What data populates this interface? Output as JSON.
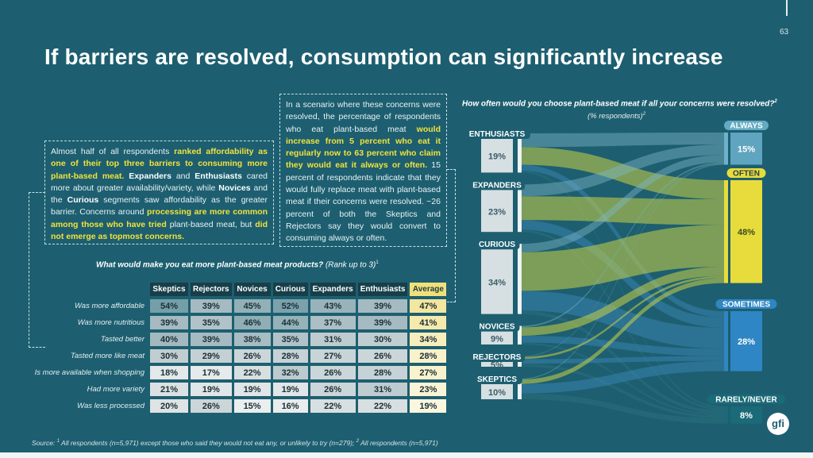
{
  "page": {
    "number": "63",
    "title": "If barriers are resolved, consumption can significantly increase"
  },
  "text_left": {
    "p1": "Almost half of all respondents ",
    "h1": "ranked affordability as one of their top three barriers to consuming more plant-based meat.",
    "p2": " ",
    "b1": "Expanders",
    "p3": " and ",
    "b2": "Enthusiasts",
    "p4": " cared more about greater availability/variety, while ",
    "b3": "Novices",
    "p5": " and the ",
    "b4": "Curious",
    "p6": " segments saw affordability as the greater barrier. Concerns around ",
    "h2": "processing are more common among those who have tried",
    "p7": " plant-based meat, but ",
    "h3": "did not emerge as topmost concerns."
  },
  "text_right": {
    "p1": "In a scenario where these concerns were resolved, the percentage of respondents who eat plant-based meat ",
    "h1": "would increase from 5 percent who eat it regularly now to 63 percent who claim they would eat it always or often.",
    "p2": " 15 percent of respondents indicate that they would fully replace meat with plant-based meat if their concerns were resolved. ~26 percent of both the Skeptics and Rejectors say they would convert to consuming always or often."
  },
  "table": {
    "title": "What would make you eat more plant-based meat products?",
    "title_note": " (Rank up to 3)",
    "title_sup": "1",
    "columns": [
      "Skeptics",
      "Rejectors",
      "Novices",
      "Curious",
      "Expanders",
      "Enthusiasts",
      "Average"
    ],
    "rows": [
      {
        "label": "Was more affordable",
        "values": [
          "54%",
          "39%",
          "45%",
          "52%",
          "43%",
          "39%",
          "47%"
        ]
      },
      {
        "label": "Was more nutritious",
        "values": [
          "39%",
          "35%",
          "46%",
          "44%",
          "37%",
          "39%",
          "41%"
        ]
      },
      {
        "label": "Tasted better",
        "values": [
          "40%",
          "39%",
          "38%",
          "35%",
          "31%",
          "30%",
          "34%"
        ]
      },
      {
        "label": "Tasted more like meat",
        "values": [
          "30%",
          "29%",
          "26%",
          "28%",
          "27%",
          "26%",
          "28%"
        ]
      },
      {
        "label": "Is more available when shopping",
        "values": [
          "18%",
          "17%",
          "22%",
          "32%",
          "26%",
          "28%",
          "27%"
        ]
      },
      {
        "label": "Had more variety",
        "values": [
          "21%",
          "19%",
          "19%",
          "19%",
          "26%",
          "31%",
          "23%"
        ]
      },
      {
        "label": "Was less processed",
        "values": [
          "20%",
          "26%",
          "15%",
          "16%",
          "22%",
          "22%",
          "19%"
        ]
      }
    ]
  },
  "chart_data": {
    "type": "sankey",
    "title": "How often would you choose plant-based meat if all your concerns were resolved?",
    "title_sup": "2",
    "subtitle": "(% respondents)",
    "subtitle_sup": "2",
    "sources": [
      {
        "name": "ENTHUSIASTS",
        "value": 19,
        "label": "19%"
      },
      {
        "name": "EXPANDERS",
        "value": 23,
        "label": "23%"
      },
      {
        "name": "CURIOUS",
        "value": 34,
        "label": "34%"
      },
      {
        "name": "NOVICES",
        "value": 9,
        "label": "9%"
      },
      {
        "name": "REJECTORS",
        "value": 5,
        "label": "5%"
      },
      {
        "name": "SKEPTICS",
        "value": 10,
        "label": "10%"
      }
    ],
    "targets": [
      {
        "name": "ALWAYS",
        "value": 15,
        "label": "15%",
        "color": "#6cb2cc"
      },
      {
        "name": "OFTEN",
        "value": 48,
        "label": "48%",
        "color": "#e7dc3c"
      },
      {
        "name": "SOMETIMES",
        "value": 28,
        "label": "28%",
        "color": "#2f86c4"
      },
      {
        "name": "RARELY/NEVER",
        "value": 8,
        "label": "8%",
        "color": "#1b6a77"
      }
    ]
  },
  "source_note": {
    "pre": "Source: ",
    "sup1": "1",
    "t1": " All respondents (n=5,971) except those who said they would not eat any, or unlikely to try (n=279);  ",
    "sup2": "2",
    "t2": " All respondents (n=5,971)"
  },
  "logo_text": "gfi",
  "colors": {
    "background": "#1d5f70",
    "highlight": "#f2e23c",
    "average": "#f1e079"
  }
}
